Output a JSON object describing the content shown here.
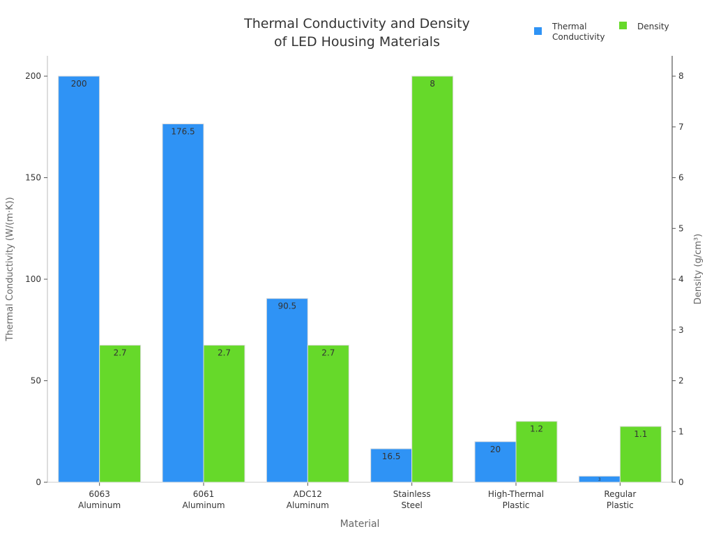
{
  "chart_data": {
    "type": "bar",
    "title_lines": [
      "Thermal Conductivity and Density",
      "of LED Housing Materials"
    ],
    "xlabel": "Material",
    "ylabel": "Thermal Conductivity (W/(m·K))",
    "y2label": "Density (g/cm³)",
    "categories": [
      [
        "6063",
        "Aluminum"
      ],
      [
        "6061",
        "Aluminum"
      ],
      [
        "ADC12",
        "Aluminum"
      ],
      [
        "Stainless",
        "Steel"
      ],
      [
        "High-Thermal",
        "Plastic"
      ],
      [
        "Regular",
        "Plastic"
      ]
    ],
    "series": [
      {
        "name": "Thermal Conductivity",
        "name_lines": [
          "Thermal",
          "Conductivity"
        ],
        "axis": "left",
        "color": "#2f93f5",
        "values": [
          200,
          176.5,
          90.5,
          16.5,
          20,
          3
        ],
        "labels": [
          "200",
          "176.5",
          "90.5",
          "16.5",
          "20",
          "3"
        ]
      },
      {
        "name": "Density",
        "name_lines": [
          "Density"
        ],
        "axis": "right",
        "color": "#66d92a",
        "values": [
          2.7,
          2.7,
          2.7,
          8,
          1.2,
          1.1
        ],
        "labels": [
          "2.7",
          "2.7",
          "2.7",
          "8",
          "1.2",
          "1.1"
        ]
      }
    ],
    "ylim": [
      0,
      210
    ],
    "y2lim": [
      0,
      8.4
    ],
    "yticks": [
      0,
      50,
      100,
      150,
      200
    ],
    "y2ticks": [
      0,
      1,
      2,
      3,
      4,
      5,
      6,
      7,
      8
    ],
    "grid": false,
    "legend_position": "top-right"
  }
}
